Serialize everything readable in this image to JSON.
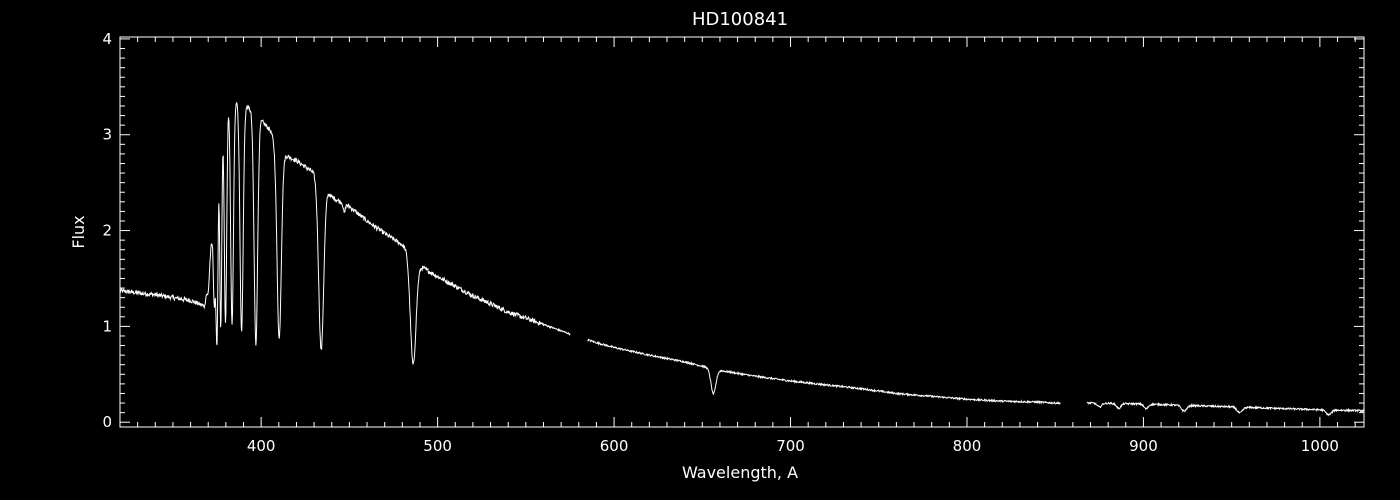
{
  "chart_data": {
    "type": "line",
    "title": "HD100841",
    "xlabel": "Wavelength, A",
    "ylabel": "Flux",
    "xlim": [
      320,
      1025
    ],
    "ylim": [
      -0.05,
      4.02
    ],
    "xticks": [
      400,
      500,
      600,
      700,
      800,
      900,
      1000
    ],
    "yticks": [
      0,
      1,
      2,
      3,
      4
    ],
    "grid": false,
    "colors": {
      "background": "#000000",
      "foreground": "#ffffff"
    },
    "series": [
      {
        "continuum": [
          [
            320,
            1.37
          ],
          [
            340,
            1.33
          ],
          [
            360,
            1.27
          ],
          [
            368,
            1.21
          ],
          [
            372,
            1.9
          ],
          [
            376,
            3.2
          ],
          [
            380,
            3.44
          ],
          [
            385,
            3.39
          ],
          [
            390,
            3.32
          ],
          [
            395,
            3.25
          ],
          [
            400,
            3.15
          ],
          [
            405,
            3.05
          ],
          [
            410,
            2.82
          ],
          [
            420,
            2.73
          ],
          [
            430,
            2.6
          ],
          [
            440,
            2.35
          ],
          [
            450,
            2.25
          ],
          [
            460,
            2.1
          ],
          [
            470,
            1.97
          ],
          [
            480,
            1.85
          ],
          [
            485,
            1.78
          ],
          [
            490,
            1.63
          ],
          [
            500,
            1.52
          ],
          [
            520,
            1.32
          ],
          [
            540,
            1.15
          ],
          [
            560,
            1.02
          ],
          [
            575,
            0.92
          ],
          [
            590,
            0.83
          ],
          [
            600,
            0.78
          ],
          [
            620,
            0.7
          ],
          [
            640,
            0.63
          ],
          [
            660,
            0.54
          ],
          [
            680,
            0.48
          ],
          [
            700,
            0.43
          ],
          [
            720,
            0.39
          ],
          [
            740,
            0.35
          ],
          [
            760,
            0.3
          ],
          [
            780,
            0.27
          ],
          [
            800,
            0.24
          ],
          [
            820,
            0.22
          ],
          [
            840,
            0.21
          ],
          [
            850,
            0.2
          ],
          [
            870,
            0.2
          ],
          [
            900,
            0.19
          ],
          [
            950,
            0.16
          ],
          [
            1000,
            0.13
          ],
          [
            1025,
            0.12
          ]
        ],
        "absorption_lines": [
          {
            "center": 370.0,
            "depth": 0.2,
            "width": 0.6
          },
          {
            "center": 373.5,
            "depth": 1.1,
            "width": 0.6
          },
          {
            "center": 375.0,
            "depth": 2.0,
            "width": 0.6
          },
          {
            "center": 377.1,
            "depth": 2.3,
            "width": 0.6
          },
          {
            "center": 379.8,
            "depth": 2.4,
            "width": 0.7
          },
          {
            "center": 383.5,
            "depth": 2.4,
            "width": 0.8
          },
          {
            "center": 388.9,
            "depth": 2.4,
            "width": 0.9
          },
          {
            "center": 397.0,
            "depth": 2.4,
            "width": 1.0
          },
          {
            "center": 410.2,
            "depth": 1.95,
            "width": 1.2
          },
          {
            "center": 434.0,
            "depth": 1.75,
            "width": 1.4
          },
          {
            "center": 447.1,
            "depth": 0.1,
            "width": 0.5
          },
          {
            "center": 486.1,
            "depth": 1.15,
            "width": 1.6
          },
          {
            "center": 656.3,
            "depth": 0.26,
            "width": 1.4
          },
          {
            "center": 875.0,
            "depth": 0.04,
            "width": 1.2
          },
          {
            "center": 886.0,
            "depth": 0.05,
            "width": 1.2
          },
          {
            "center": 901.5,
            "depth": 0.05,
            "width": 1.2
          },
          {
            "center": 923.0,
            "depth": 0.06,
            "width": 1.5
          },
          {
            "center": 954.6,
            "depth": 0.06,
            "width": 1.5
          },
          {
            "center": 1005.0,
            "depth": 0.05,
            "width": 1.5
          }
        ],
        "gaps": [
          [
            575,
            585
          ],
          [
            853,
            868
          ]
        ],
        "noise_amplitude": 0.015
      }
    ]
  }
}
